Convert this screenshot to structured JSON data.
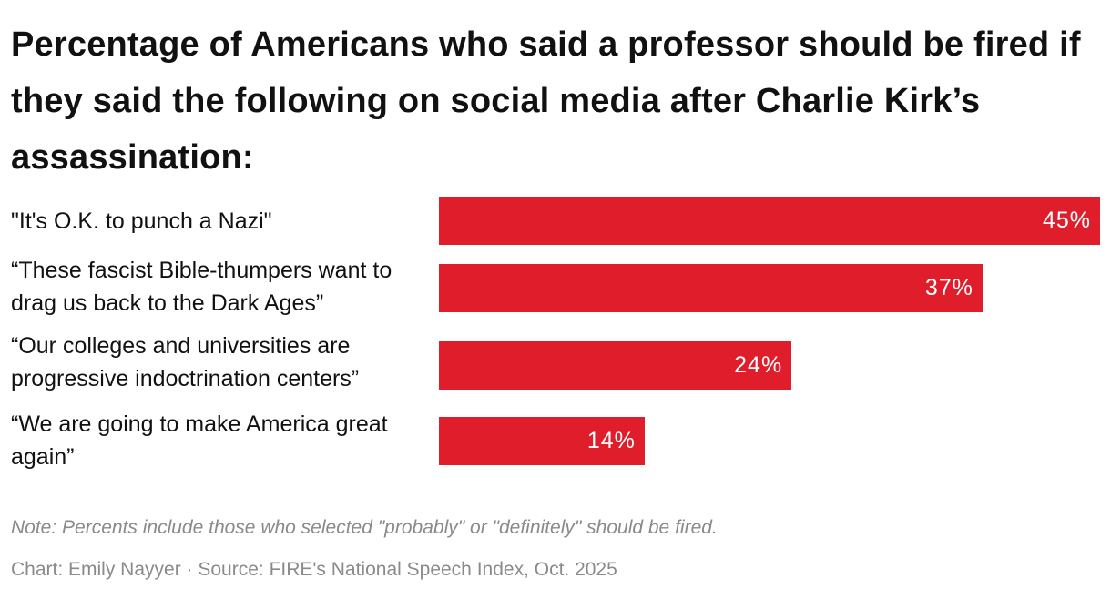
{
  "chart_data": {
    "type": "bar",
    "orientation": "horizontal",
    "title": "Percentage of Americans who said a professor should be fired if they said the following on social media after Charlie Kirk’s assassination:",
    "categories": [
      "\"It's O.K. to punch a Nazi\"",
      "“These fascist Bible-thumpers want to drag us back to the Dark Ages”",
      "“Our colleges and universities are progressive indoctrination centers”",
      "“We are going to make America great again”"
    ],
    "values": [
      45,
      37,
      24,
      14
    ],
    "value_labels": [
      "45%",
      "37%",
      "24%",
      "14%"
    ],
    "xlim": [
      0,
      45
    ],
    "grid": false,
    "bar_color": "#e01e2b"
  },
  "note": "Note: Percents include those who selected \"probably\" or \"definitely\" should be fired.",
  "credit": "Chart: Emily Nayyer  · Source: FIRE's National Speech Index, Oct. 2025"
}
